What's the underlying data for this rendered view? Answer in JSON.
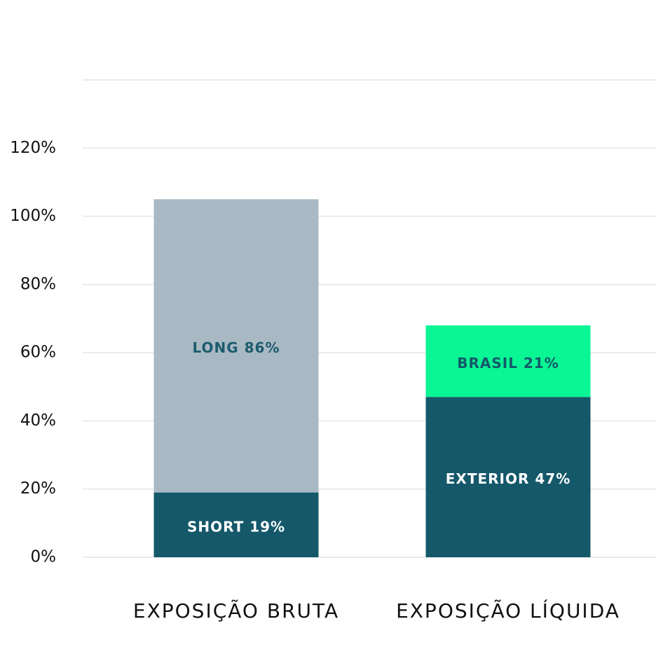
{
  "chart_data": {
    "type": "stacked-bar",
    "categories": [
      "EXPOSIÇÃO BRUTA",
      "EXPOSIÇÃO LÍQUIDA"
    ],
    "series": [
      {
        "color": "#14586a",
        "label_color": "#ffffff",
        "values": [
          19,
          null
        ],
        "value_labels": [
          "SHORT 19%",
          null
        ]
      },
      {
        "color": "#a9b9c3",
        "label_color": "#1b5c6e",
        "values": [
          86,
          null
        ],
        "value_labels": [
          "LONG 86%",
          null
        ]
      },
      {
        "color": "#14586a",
        "label_color": "#ffffff",
        "values": [
          null,
          47
        ],
        "value_labels": [
          null,
          "EXTERIOR 47%"
        ]
      },
      {
        "color": "#0af594",
        "label_color": "#14586a",
        "values": [
          null,
          21
        ],
        "value_labels": [
          null,
          "BRASIL 21%"
        ]
      }
    ],
    "ylim": [
      0,
      140
    ],
    "yticks": [
      {
        "value": 0,
        "label": "0%"
      },
      {
        "value": 20,
        "label": "20%"
      },
      {
        "value": 40,
        "label": "40%"
      },
      {
        "value": 60,
        "label": "60%"
      },
      {
        "value": 80,
        "label": "80%"
      },
      {
        "value": 100,
        "label": "100%"
      },
      {
        "value": 120,
        "label": "120%"
      }
    ],
    "grid": true
  }
}
